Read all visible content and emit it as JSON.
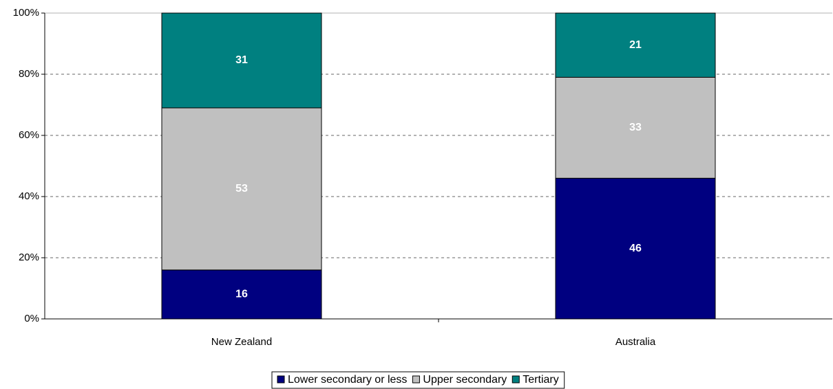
{
  "chart_data": {
    "type": "bar",
    "stacked": true,
    "categories": [
      "New Zealand",
      "Australia"
    ],
    "series": [
      {
        "name": "Lower secondary or less",
        "color": "#000080",
        "values": [
          16,
          46
        ]
      },
      {
        "name": "Upper secondary",
        "color": "#c0c0c0",
        "values": [
          53,
          33
        ]
      },
      {
        "name": "Tertiary",
        "color": "#008080",
        "values": [
          31,
          21
        ]
      }
    ],
    "ylim": [
      0,
      100
    ],
    "yticks": [
      {
        "value": 0,
        "label": "0%"
      },
      {
        "value": 20,
        "label": "20%"
      },
      {
        "value": 40,
        "label": "40%"
      },
      {
        "value": 60,
        "label": "60%"
      },
      {
        "value": 80,
        "label": "80%"
      },
      {
        "value": 100,
        "label": "100%"
      }
    ],
    "grid": true,
    "legend": "bottom"
  }
}
